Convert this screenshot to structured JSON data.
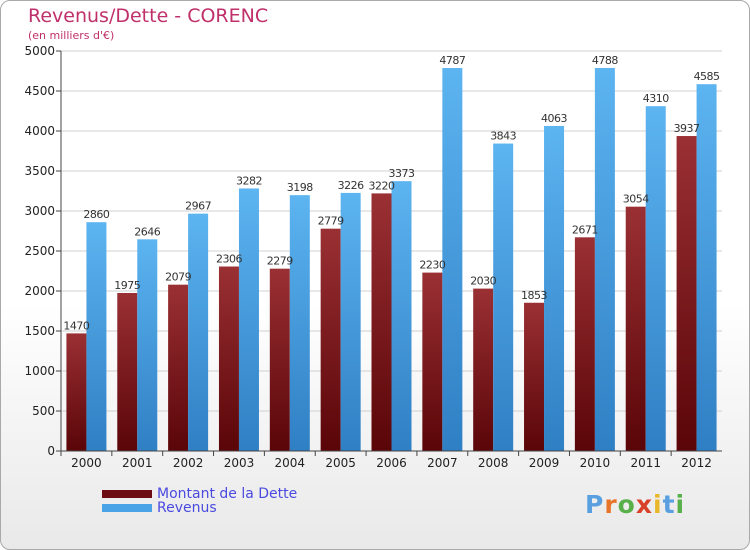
{
  "title": "Revenus/Dette - CORENC",
  "subtitle": "(en milliers d'€)",
  "colors": {
    "dette": "#7a1c22",
    "revenus": "#4aa3e6",
    "title": "#c0306a",
    "legend_text": "#4a4ae0"
  },
  "legend": [
    {
      "label": "Montant de la Dette",
      "color": "#6b0d12"
    },
    {
      "label": "Revenus",
      "color": "#4aa3e6"
    }
  ],
  "logo": {
    "text": "Proxiti",
    "letters": [
      "P",
      "r",
      "o",
      "x",
      "i",
      "t",
      "i"
    ],
    "colors": [
      "#5aa0e0",
      "#e8742a",
      "#58b04a",
      "#d8402a",
      "#e8b82a",
      "#5aa0e0",
      "#58b04a"
    ]
  },
  "chart_data": {
    "type": "bar",
    "categories": [
      "2000",
      "2001",
      "2002",
      "2003",
      "2004",
      "2005",
      "2006",
      "2007",
      "2008",
      "2009",
      "2010",
      "2011",
      "2012"
    ],
    "series": [
      {
        "name": "Montant de la Dette",
        "values": [
          1470,
          1975,
          2079,
          2306,
          2279,
          2779,
          3220,
          2230,
          2030,
          1853,
          2671,
          3054,
          3937
        ],
        "labels": [
          "1470",
          "1975",
          "2079",
          "2306",
          "2279",
          "2779",
          "3220",
          "2230",
          "2030",
          "1853",
          "2671",
          "3054",
          "3937"
        ]
      },
      {
        "name": "Revenus",
        "values": [
          2860,
          2646,
          2967,
          3282,
          3198,
          3226,
          3373,
          4787,
          3843,
          4063,
          4788,
          4310,
          4585
        ],
        "labels": [
          "2860",
          "2646",
          "2967",
          "3282",
          "3198",
          "3226",
          "3373",
          "4787",
          "3843",
          "4063",
          "4788",
          "4310",
          "4585"
        ]
      }
    ],
    "ylim": [
      0,
      5000
    ],
    "yticks": [
      0,
      500,
      1000,
      1500,
      2000,
      2500,
      3000,
      3500,
      4000,
      4500,
      5000
    ],
    "grid": true,
    "legend_position": "bottom-left"
  }
}
